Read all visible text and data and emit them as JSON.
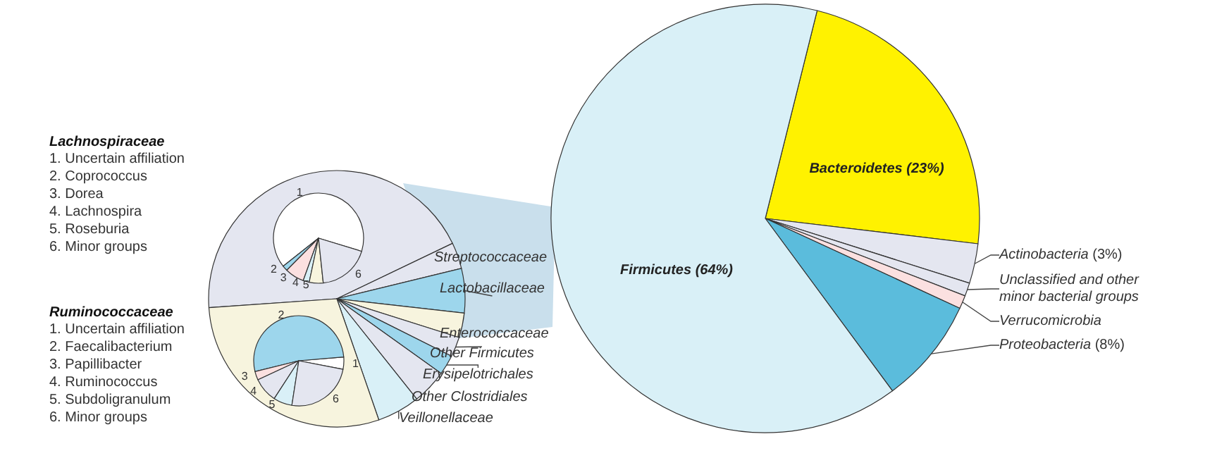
{
  "chart_data": [
    {
      "type": "pie",
      "categories": [
        "Bacteroidetes",
        "Actinobacteria",
        "Unclassified and other minor bacterial groups",
        "Verrucomicrobia",
        "Proteobacteria",
        "Firmicutes"
      ],
      "values": [
        23,
        3,
        1,
        1,
        8,
        64
      ],
      "value_labels": [
        "(23%)",
        "(3%)",
        null,
        null,
        "(8%)",
        "(64%)"
      ],
      "colors": [
        "#fff200",
        "#e4e6f0",
        "#e4e6f0",
        "#fbe0e0",
        "#5bbcdc",
        "#d9f0f7"
      ]
    },
    {
      "type": "pie",
      "categories": [
        null,
        "Streptococcaceae",
        "Lactobacillaceae",
        "Enterococcaceae",
        "Other Firmicutes",
        "Erysipelotrichales",
        "Other Clostridiales",
        "Veillonellaceae",
        null
      ],
      "values": [
        44,
        3.3,
        5.6,
        3.1,
        2.5,
        2.5,
        4.4,
        5.4,
        29.2
      ],
      "colors": [
        "#e4e6f0",
        "#e4e6f0",
        "#9dd6ec",
        "#f7f4de",
        "#e4e6f0",
        "#9dd6ec",
        "#e4e6f0",
        "#d9f0f7",
        "#f7f4de"
      ]
    },
    {
      "type": "pie",
      "title": "Lachnospiraceae",
      "categories": [
        "1",
        "2",
        "3",
        "4",
        "5",
        "6"
      ],
      "annotations": [
        "1. Uncertain affiliation",
        "2. Coprococcus",
        "3. Dorea",
        "4. Lachnospira",
        "5. Roseburia",
        "6. Minor groups"
      ],
      "values": [
        65.4,
        1.9,
        6.9,
        2.2,
        5.0,
        18.6
      ],
      "colors": [
        "#ffffff",
        "#9dd6ec",
        "#fbe0e0",
        "#d9f0f7",
        "#f7f4de",
        "#e4e6f0"
      ]
    },
    {
      "type": "pie",
      "title": "Ruminococcaceae",
      "categories": [
        "1",
        "2",
        "3",
        "4",
        "5",
        "6"
      ],
      "annotations": [
        "1. Uncertain affiliation",
        "2. Faecalibacterium",
        "3. Papillibacter",
        "4. Ruminococcus",
        "5. Subdoligranulum",
        "6. Minor groups"
      ],
      "values": [
        4.4,
        52.5,
        3.1,
        8.9,
        6.7,
        24.4
      ],
      "colors": [
        "#ffffff",
        "#9dd6ec",
        "#fbe0e0",
        "#e4e6f0",
        "#d9f0f7",
        "#e4e6f0"
      ]
    }
  ]
}
